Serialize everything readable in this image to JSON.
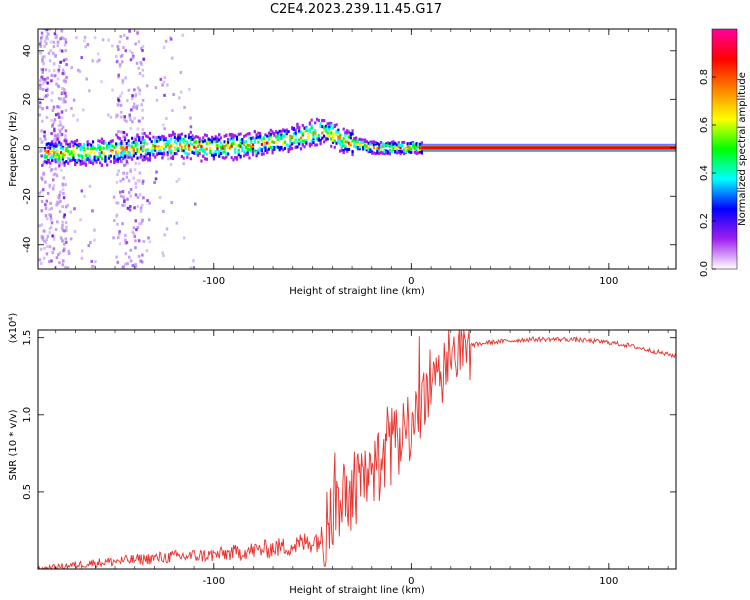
{
  "title": "C2E4.2023.239.11.45.G17",
  "chart_data": [
    {
      "type": "heatmap",
      "xlabel": "Height of straight line (km)",
      "ylabel": "Frequency (Hz)",
      "xlim": [
        -189,
        134
      ],
      "ylim": [
        -50,
        49
      ],
      "x_ticks": [
        -100,
        0,
        100
      ],
      "y_ticks": [
        -40,
        -20,
        0,
        20,
        40
      ],
      "grid": false,
      "colorbar": {
        "label": "Normalized spectral amplitude",
        "range": [
          0,
          1
        ],
        "ticks": [
          "0.0",
          "0.2",
          "0.4",
          "0.6",
          "0.8"
        ],
        "colors": [
          "#ffffff",
          "#a020f0",
          "#0000ff",
          "#00ffff",
          "#00ff00",
          "#ffff00",
          "#ff8000",
          "#ff0000",
          "#ff00a0"
        ]
      },
      "ridge": {
        "x": [
          -178,
          -160,
          -140,
          -120,
          -100,
          -80,
          -60,
          -50,
          -45,
          -40,
          -35,
          -30,
          -20,
          -10,
          0,
          5,
          20,
          60,
          100,
          134
        ],
        "y": [
          -2,
          -2,
          0,
          1,
          0,
          1,
          4,
          6,
          7,
          5,
          3,
          2,
          0,
          0,
          0,
          0,
          0,
          0,
          0,
          0
        ]
      }
    },
    {
      "type": "line",
      "xlabel": "Height of straight line (km)",
      "ylabel": "SNR (10 * v/v)",
      "scale_label": "(x10⁴)",
      "xlim": [
        -189,
        134
      ],
      "ylim": [
        0,
        1.55
      ],
      "x_ticks": [
        -100,
        0,
        100
      ],
      "y_ticks": [
        "0.5",
        "1.0",
        "1.5"
      ],
      "grid": false,
      "series": [
        {
          "color": "#e8322d",
          "x": [
            -189,
            -160,
            -140,
            -120,
            -100,
            -80,
            -60,
            -45,
            -40,
            -35,
            -30,
            -20,
            -10,
            0,
            10,
            20,
            30,
            40,
            60,
            80,
            100,
            110,
            120,
            134
          ],
          "y": [
            0.0,
            0.04,
            0.06,
            0.08,
            0.09,
            0.12,
            0.15,
            0.2,
            0.35,
            0.45,
            0.5,
            0.6,
            0.75,
            0.95,
            1.15,
            1.35,
            1.45,
            1.47,
            1.49,
            1.49,
            1.47,
            1.45,
            1.42,
            1.38
          ]
        }
      ]
    }
  ]
}
